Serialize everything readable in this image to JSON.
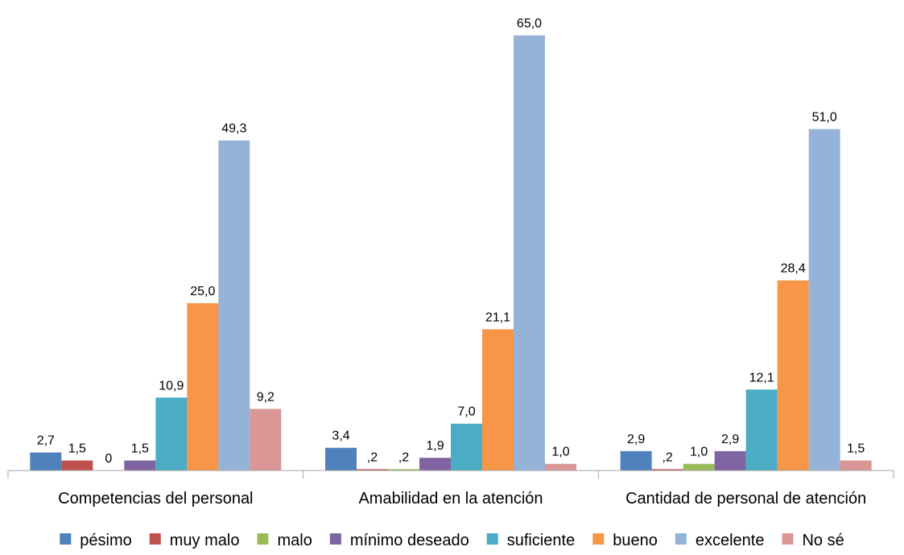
{
  "chart_data": {
    "type": "bar",
    "categories": [
      "Competencias del personal",
      "Amabilidad en la atención",
      "Cantidad de personal de atención"
    ],
    "series": [
      {
        "name": "pésimo",
        "color": "#4F81BD",
        "values": [
          2.7,
          3.4,
          2.9
        ],
        "labels": [
          "2,7",
          "3,4",
          "2,9"
        ]
      },
      {
        "name": "muy malo",
        "color": "#C0504D",
        "values": [
          1.5,
          0.2,
          0.2
        ],
        "labels": [
          "1,5",
          ",2",
          ",2"
        ]
      },
      {
        "name": "malo",
        "color": "#9BBB59",
        "values": [
          0,
          0.2,
          1.0
        ],
        "labels": [
          "0",
          ",2",
          "1,0"
        ]
      },
      {
        "name": "mínimo deseado",
        "color": "#8064A2",
        "values": [
          1.5,
          1.9,
          2.9
        ],
        "labels": [
          "1,5",
          "1,9",
          "2,9"
        ]
      },
      {
        "name": "suficiente",
        "color": "#4BACC6",
        "values": [
          10.9,
          7.0,
          12.1
        ],
        "labels": [
          "10,9",
          "7,0",
          "12,1"
        ]
      },
      {
        "name": "bueno",
        "color": "#F79646",
        "values": [
          25.0,
          21.1,
          28.4
        ],
        "labels": [
          "25,0",
          "21,1",
          "28,4"
        ]
      },
      {
        "name": "excelente",
        "color": "#95B3D7",
        "values": [
          49.3,
          65.0,
          51.0
        ],
        "labels": [
          "49,3",
          "65,0",
          "51,0"
        ]
      },
      {
        "name": "No sé",
        "color": "#D99694",
        "values": [
          9.2,
          1.0,
          1.5
        ],
        "labels": [
          "9,2",
          "1,0",
          "1,5"
        ]
      }
    ],
    "ylim": [
      0,
      65
    ],
    "grid": false,
    "legend_position": "bottom",
    "axis_color": "#A6A6A6"
  }
}
